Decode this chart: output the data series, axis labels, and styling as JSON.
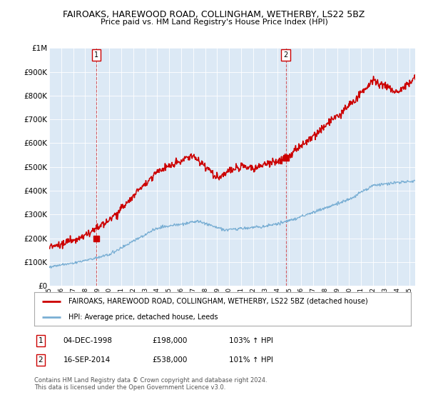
{
  "title": "FAIROAKS, HAREWOOD ROAD, COLLINGHAM, WETHERBY, LS22 5BZ",
  "subtitle": "Price paid vs. HM Land Registry's House Price Index (HPI)",
  "background_color": "#dce9f5",
  "plot_bg_color": "#dce9f5",
  "hpi_color": "#7aafd4",
  "price_color": "#cc0000",
  "ylim": [
    0,
    1000000
  ],
  "yticks": [
    0,
    100000,
    200000,
    300000,
    400000,
    500000,
    600000,
    700000,
    800000,
    900000,
    1000000
  ],
  "sale1_date": 1998.92,
  "sale1_price": 198000,
  "sale1_label": "1",
  "sale2_date": 2014.71,
  "sale2_price": 538000,
  "sale2_label": "2",
  "legend_line1": "FAIROAKS, HAREWOOD ROAD, COLLINGHAM, WETHERBY, LS22 5BZ (detached house)",
  "legend_line2": "HPI: Average price, detached house, Leeds",
  "table_row1": [
    "1",
    "04-DEC-1998",
    "£198,000",
    "103% ↑ HPI"
  ],
  "table_row2": [
    "2",
    "16-SEP-2014",
    "£538,000",
    "101% ↑ HPI"
  ],
  "footer": "Contains HM Land Registry data © Crown copyright and database right 2024.\nThis data is licensed under the Open Government Licence v3.0.",
  "xstart": 1995.0,
  "xend": 2025.5
}
